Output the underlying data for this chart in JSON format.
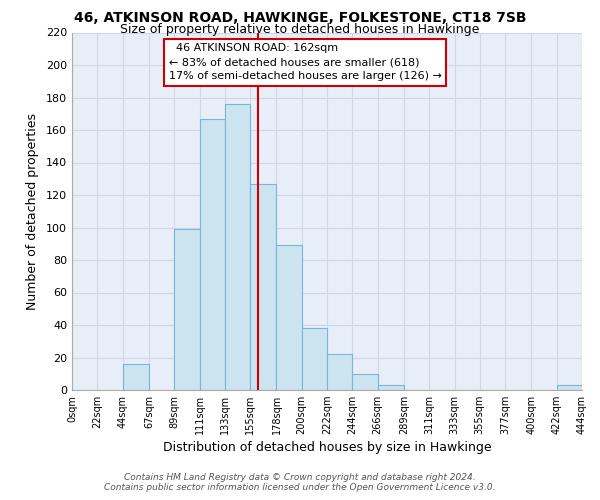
{
  "title1": "46, ATKINSON ROAD, HAWKINGE, FOLKESTONE, CT18 7SB",
  "title2": "Size of property relative to detached houses in Hawkinge",
  "xlabel": "Distribution of detached houses by size in Hawkinge",
  "ylabel": "Number of detached properties",
  "bar_left_edges": [
    0,
    22,
    44,
    67,
    89,
    111,
    133,
    155,
    178,
    200,
    222,
    244,
    266,
    289,
    311,
    333,
    355,
    377,
    400,
    422
  ],
  "bar_widths": [
    22,
    22,
    23,
    22,
    22,
    22,
    22,
    23,
    22,
    22,
    22,
    22,
    23,
    22,
    22,
    22,
    22,
    23,
    22,
    22
  ],
  "bar_heights": [
    0,
    0,
    16,
    0,
    99,
    167,
    176,
    127,
    89,
    38,
    22,
    10,
    3,
    0,
    0,
    0,
    0,
    0,
    0,
    3
  ],
  "bar_color": "#cce4f0",
  "bar_edge_color": "#7ab5d4",
  "vline_x": 162,
  "vline_color": "#cc0000",
  "tick_labels": [
    "0sqm",
    "22sqm",
    "44sqm",
    "67sqm",
    "89sqm",
    "111sqm",
    "133sqm",
    "155sqm",
    "178sqm",
    "200sqm",
    "222sqm",
    "244sqm",
    "266sqm",
    "289sqm",
    "311sqm",
    "333sqm",
    "355sqm",
    "377sqm",
    "400sqm",
    "422sqm",
    "444sqm"
  ],
  "ylim": [
    0,
    220
  ],
  "yticks": [
    0,
    20,
    40,
    60,
    80,
    100,
    120,
    140,
    160,
    180,
    200,
    220
  ],
  "footer_line1": "Contains HM Land Registry data © Crown copyright and database right 2024.",
  "footer_line2": "Contains public sector information licensed under the Open Government Licence v3.0.",
  "annot_title": "46 ATKINSON ROAD: 162sqm",
  "annot_line1": "← 83% of detached houses are smaller (618)",
  "annot_line2": "17% of semi-detached houses are larger (126) →",
  "annot_box_color": "#ffffff",
  "annot_border_color": "#cc0000",
  "grid_color": "#ccd8e8",
  "background_color": "#e8eef8"
}
